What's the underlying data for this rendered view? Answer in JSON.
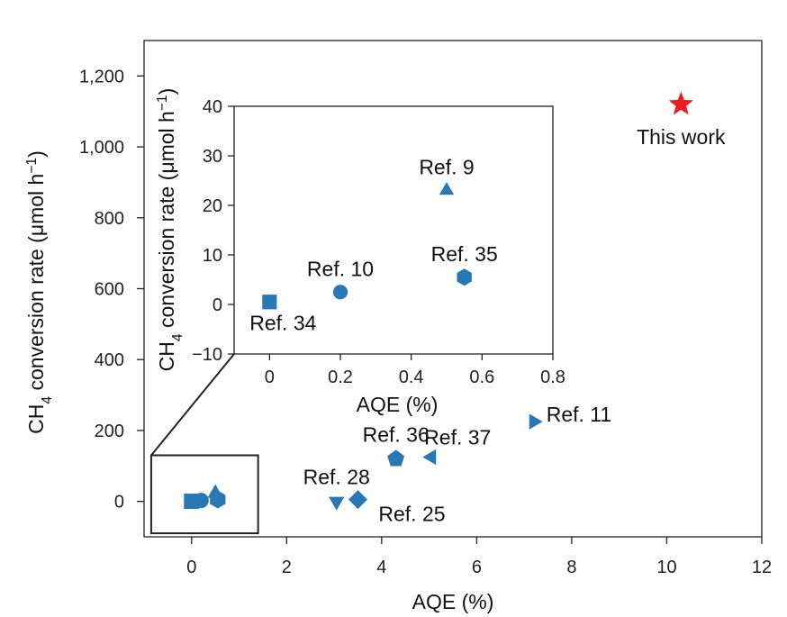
{
  "chart_data": [
    {
      "type": "scatter",
      "role": "main",
      "xlabel": "AQE (%)",
      "ylabel": {
        "prefix": "CH",
        "sub": "4",
        "mid": " conversion rate (μmol h",
        "sup": "−1",
        "suffix": ")"
      },
      "xlim": [
        -1,
        12
      ],
      "ylim": [
        -100,
        1300
      ],
      "xticks": [
        0,
        2,
        4,
        6,
        8,
        10,
        12
      ],
      "yticks": [
        0,
        200,
        400,
        600,
        800,
        1000,
        1200
      ],
      "ytick_labels": [
        "0",
        "200",
        "400",
        "600",
        "800",
        "1,000",
        "1,200"
      ],
      "grid": false,
      "colors": {
        "refs": "#2878b5",
        "this_work": "#ee1c1c",
        "this_work_label": "#e07b39"
      },
      "points": [
        {
          "label": "This work",
          "x": 10.3,
          "y": 1120,
          "marker": "star",
          "highlight": true,
          "label_pos": "below"
        },
        {
          "label": "Ref. 11",
          "x": 7.2,
          "y": 225,
          "marker": "triangle-right",
          "label_pos": "right"
        },
        {
          "label": "Ref. 37",
          "x": 5.05,
          "y": 125,
          "marker": "triangle-left",
          "label_pos": "above-right"
        },
        {
          "label": "Ref. 36",
          "x": 4.3,
          "y": 120,
          "marker": "pentagon",
          "label_pos": "above"
        },
        {
          "label": "Ref. 28",
          "x": 3.05,
          "y": 0,
          "marker": "triangle-down",
          "label_pos": "above"
        },
        {
          "label": "Ref. 25",
          "x": 3.5,
          "y": 5,
          "marker": "diamond",
          "label_pos": "below-right"
        },
        {
          "label": "",
          "x": 0.0,
          "y": 0.5,
          "marker": "square"
        },
        {
          "label": "",
          "x": 0.2,
          "y": 2.5,
          "marker": "circle"
        },
        {
          "label": "",
          "x": 0.5,
          "y": 23,
          "marker": "triangle-up"
        },
        {
          "label": "",
          "x": 0.55,
          "y": 5.5,
          "marker": "hexagon"
        }
      ],
      "zoom_box": {
        "x": [
          -0.85,
          1.4
        ],
        "y": [
          -90,
          130
        ]
      }
    },
    {
      "type": "scatter",
      "role": "inset",
      "xlabel": "AQE (%)",
      "ylabel": {
        "prefix": "CH",
        "sub": "4",
        "mid": " conversion rate (μmol h",
        "sup": "−1",
        "suffix": ")"
      },
      "xlim": [
        -0.1,
        0.8
      ],
      "ylim": [
        -10,
        40
      ],
      "xticks": [
        0,
        0.2,
        0.4,
        0.6,
        0.8
      ],
      "xtick_labels": [
        "0",
        "0.2",
        "0.4",
        "0.6",
        "0.8"
      ],
      "yticks": [
        -10,
        0,
        10,
        20,
        30,
        40
      ],
      "ytick_labels": [
        "−10",
        "0",
        "10",
        "20",
        "30",
        "40"
      ],
      "grid": false,
      "points": [
        {
          "label": "Ref. 9",
          "x": 0.5,
          "y": 23,
          "marker": "triangle-up",
          "label_pos": "above"
        },
        {
          "label": "Ref. 35",
          "x": 0.55,
          "y": 5.5,
          "marker": "hexagon",
          "label_pos": "above"
        },
        {
          "label": "Ref. 10",
          "x": 0.2,
          "y": 2.5,
          "marker": "circle",
          "label_pos": "above"
        },
        {
          "label": "Ref. 34",
          "x": 0.0,
          "y": 0.5,
          "marker": "square",
          "label_pos": "below-right"
        }
      ]
    }
  ]
}
